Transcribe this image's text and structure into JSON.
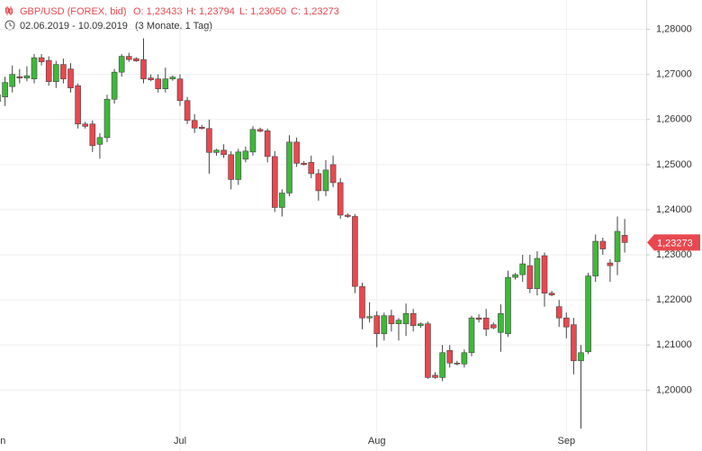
{
  "chart_data": {
    "type": "candlestick",
    "title": "GBP/USD (FOREX, bid)",
    "ohlc_labels": [
      "O: 1,23433",
      "H: 1,23794",
      "L: 1,23050",
      "C: 1,23273"
    ],
    "subtitle": "02.06.2019 - 10.09.2019",
    "period": "(3 Monate, 1 Tag)",
    "categories": [
      "Jun",
      null,
      null,
      null,
      null,
      null,
      null,
      null,
      null,
      null,
      null,
      null,
      null,
      null,
      null,
      null,
      null,
      null,
      null,
      null,
      null,
      null,
      null,
      null,
      null,
      "Jul",
      null,
      null,
      null,
      null,
      null,
      null,
      null,
      null,
      null,
      null,
      null,
      null,
      null,
      null,
      null,
      null,
      null,
      null,
      null,
      null,
      null,
      null,
      null,
      null,
      null,
      null,
      "Aug",
      null,
      null,
      null,
      null,
      null,
      null,
      null,
      null,
      null,
      null,
      null,
      null,
      null,
      null,
      null,
      null,
      null,
      null,
      null,
      null,
      null,
      null,
      null,
      null,
      null,
      "Sep",
      null,
      null,
      null,
      null,
      null,
      null,
      null,
      null
    ],
    "open": [
      1.264,
      1.265,
      1.2673,
      1.2695,
      1.2692,
      1.269,
      1.2737,
      1.2731,
      1.2684,
      1.2722,
      1.2712,
      1.2675,
      1.259,
      1.259,
      1.2545,
      1.256,
      1.2645,
      1.2705,
      1.274,
      1.2735,
      1.2733,
      1.2692,
      1.269,
      1.2668,
      1.269,
      1.269,
      1.2642,
      1.2598,
      1.2583,
      1.258,
      1.2527,
      1.2532,
      1.2522,
      1.2467,
      1.2512,
      1.2528,
      1.2578,
      1.2575,
      1.2518,
      1.2405,
      1.2437,
      1.255,
      1.2503,
      1.2505,
      1.248,
      1.2442,
      1.25,
      1.246,
      1.2388,
      1.2385,
      1.223,
      1.216,
      1.2165,
      1.2125,
      1.2165,
      1.2147,
      1.2147,
      1.217,
      1.2143,
      1.2147,
      1.2033,
      1.2028,
      1.2088,
      1.206,
      1.2058,
      1.2083,
      1.216,
      1.216,
      1.2145,
      1.2128,
      1.2125,
      1.225,
      1.2256,
      1.2276,
      1.2225,
      1.2298,
      1.2215,
      1.2185,
      1.216,
      1.2145,
      1.2065,
      1.2085,
      1.2253,
      1.233,
      1.2282,
      1.2285,
      1.23433
    ],
    "high": [
      1.266,
      1.2695,
      1.272,
      1.2712,
      1.2718,
      1.2745,
      1.2745,
      1.274,
      1.273,
      1.2735,
      1.2725,
      1.268,
      1.2595,
      1.2598,
      1.257,
      1.2655,
      1.2712,
      1.2745,
      1.2748,
      1.2738,
      1.278,
      1.27,
      1.27,
      1.2715,
      1.2698,
      1.27,
      1.265,
      1.2612,
      1.2588,
      1.26,
      1.2535,
      1.2545,
      1.253,
      1.2535,
      1.254,
      1.2585,
      1.2582,
      1.258,
      1.253,
      1.2445,
      1.2565,
      1.256,
      1.2508,
      1.252,
      1.249,
      1.251,
      1.252,
      1.247,
      1.2392,
      1.239,
      1.2238,
      1.2195,
      1.2175,
      1.2172,
      1.2178,
      1.216,
      1.2192,
      1.218,
      1.215,
      1.2152,
      1.204,
      1.21,
      1.21,
      1.2065,
      1.209,
      1.2165,
      1.2168,
      1.218,
      1.215,
      1.219,
      1.2265,
      1.226,
      1.23,
      1.23,
      1.2308,
      1.2305,
      1.222,
      1.22,
      1.2172,
      1.216,
      1.21,
      1.226,
      1.2345,
      1.2338,
      1.229,
      1.2385,
      1.23794
    ],
    "low": [
      1.261,
      1.263,
      1.266,
      1.268,
      1.2685,
      1.268,
      1.272,
      1.2675,
      1.267,
      1.268,
      1.266,
      1.258,
      1.258,
      1.2528,
      1.2513,
      1.255,
      1.2635,
      1.2695,
      1.2728,
      1.2728,
      1.268,
      1.2685,
      1.266,
      1.266,
      1.2686,
      1.263,
      1.259,
      1.257,
      1.2578,
      1.248,
      1.252,
      1.2515,
      1.2445,
      1.2455,
      1.2505,
      1.252,
      1.2572,
      1.2505,
      1.2395,
      1.2385,
      1.243,
      1.2495,
      1.2498,
      1.247,
      1.242,
      1.243,
      1.245,
      1.238,
      1.2382,
      1.2215,
      1.2135,
      1.215,
      1.2095,
      1.211,
      1.213,
      1.211,
      1.212,
      1.213,
      1.2138,
      1.2025,
      1.2025,
      1.202,
      1.205,
      1.2055,
      1.205,
      1.2075,
      1.215,
      1.212,
      1.2135,
      1.2085,
      1.2118,
      1.2245,
      1.224,
      1.2215,
      1.221,
      1.2185,
      1.2208,
      1.214,
      1.2115,
      1.2035,
      1.1915,
      1.208,
      1.224,
      1.23,
      1.224,
      1.2255,
      1.2305
    ],
    "close": [
      1.2655,
      1.2682,
      1.27,
      1.2692,
      1.2697,
      1.2737,
      1.2728,
      1.2684,
      1.2722,
      1.269,
      1.267,
      1.259,
      1.2585,
      1.2542,
      1.256,
      1.2645,
      1.2705,
      1.274,
      1.2733,
      1.273,
      1.269,
      1.2688,
      1.2668,
      1.269,
      1.2694,
      1.2642,
      1.2598,
      1.2581,
      1.258,
      1.2527,
      1.2532,
      1.2522,
      1.2467,
      1.2528,
      1.253,
      1.2578,
      1.2574,
      1.2518,
      1.2405,
      1.2437,
      1.255,
      1.2503,
      1.25,
      1.248,
      1.2442,
      1.2488,
      1.246,
      1.2388,
      1.2385,
      1.223,
      1.216,
      1.2163,
      1.2125,
      1.2165,
      1.2147,
      1.2155,
      1.217,
      1.2143,
      1.2147,
      1.2028,
      1.2028,
      1.2083,
      1.206,
      1.2058,
      1.2083,
      1.216,
      1.2157,
      1.2135,
      1.2138,
      1.217,
      1.225,
      1.2256,
      1.228,
      1.2225,
      1.2292,
      1.2215,
      1.2211,
      1.216,
      1.214,
      1.2065,
      1.2083,
      1.2253,
      1.233,
      1.2313,
      1.2276,
      1.2352,
      1.23273
    ],
    "up_color": "#3fb83a",
    "down_color": "#e8484f",
    "last_price": {
      "value": 1.23273,
      "label": "1,23273"
    },
    "ylim": [
      1.1865,
      1.2865
    ],
    "yticks": [
      {
        "value": 1.2,
        "label": "1,20000"
      },
      {
        "value": 1.21,
        "label": "1,21000"
      },
      {
        "value": 1.22,
        "label": "1,22000"
      },
      {
        "value": 1.23,
        "label": "1,23000"
      },
      {
        "value": 1.24,
        "label": "1,24000"
      },
      {
        "value": 1.25,
        "label": "1,25000"
      },
      {
        "value": 1.26,
        "label": "1,26000"
      },
      {
        "value": 1.27,
        "label": "1,27000"
      },
      {
        "value": 1.28,
        "label": "1,28000"
      }
    ],
    "grid": true
  }
}
